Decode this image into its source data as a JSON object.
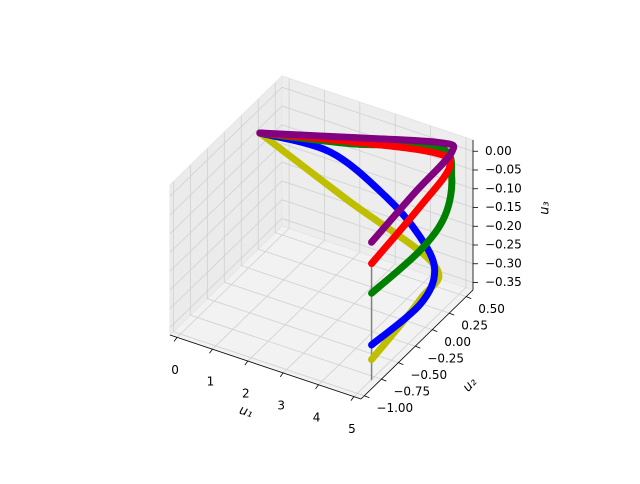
{
  "chart_data": {
    "type": "line3d",
    "x_label": "u₁",
    "y_label": "u₂",
    "z_label": "u₃",
    "xlim": [
      -0.2,
      5.2
    ],
    "ylim": [
      -1.05,
      0.6
    ],
    "zlim": [
      -0.37,
      0.03
    ],
    "xticks": [
      0,
      1,
      2,
      3,
      4,
      5
    ],
    "yticks": [
      {
        "value": -1,
        "label": "−1.00"
      },
      {
        "value": -0.75,
        "label": "−0.75"
      },
      {
        "value": -0.5,
        "label": "−0.50"
      },
      {
        "value": -0.25,
        "label": "−0.25"
      },
      {
        "value": 0,
        "label": "0.00"
      },
      {
        "value": 0.25,
        "label": "0.25"
      },
      {
        "value": 0.5,
        "label": "0.50"
      }
    ],
    "zticks": [
      {
        "value": -0.35,
        "label": "−0.35"
      },
      {
        "value": -0.3,
        "label": "−0.30"
      },
      {
        "value": -0.25,
        "label": "−0.25"
      },
      {
        "value": -0.2,
        "label": "−0.20"
      },
      {
        "value": -0.15,
        "label": "−0.15"
      },
      {
        "value": -0.1,
        "label": "−0.10"
      },
      {
        "value": -0.05,
        "label": "−0.05"
      },
      {
        "value": 0,
        "label": "0.00"
      }
    ],
    "grid": true,
    "series": [
      {
        "color": "#808080",
        "width": 1.5,
        "x": [
          5,
          5
        ],
        "y": [
          -0.79,
          -0.79
        ],
        "z": [
          -0.37,
          -0.05
        ]
      },
      {
        "color": "#bfbf00",
        "width": 7,
        "x": [
          0,
          2.5,
          5,
          5,
          5
        ],
        "y": [
          0.17,
          0.16,
          0.14,
          -0.08,
          -0.79
        ],
        "z": [
          -0.04,
          -0.138,
          -0.23,
          -0.283,
          -0.317
        ]
      },
      {
        "color": "#0000ff",
        "width": 7,
        "x": [
          0,
          1.5,
          3,
          4.3,
          5,
          5,
          5
        ],
        "y": [
          0.17,
          0.42,
          0.45,
          0.28,
          0.14,
          -0.08,
          -0.79
        ],
        "z": [
          -0.04,
          -0.087,
          -0.162,
          -0.198,
          -0.243,
          -0.296,
          -0.278
        ]
      },
      {
        "color": "#008000",
        "width": 7,
        "x": [
          0,
          2.5,
          4.5,
          5,
          5,
          5,
          5
        ],
        "y": [
          0.17,
          0.27,
          0.47,
          0.39,
          0.29,
          -0.08,
          -0.79
        ],
        "z": [
          -0.04,
          -0.008,
          0.011,
          -0.038,
          -0.124,
          -0.152,
          -0.14
        ]
      },
      {
        "color": "#ff0000",
        "width": 7,
        "x": [
          0,
          2.5,
          4.5,
          5,
          5,
          5
        ],
        "y": [
          0.17,
          0.27,
          0.4,
          0.36,
          -0.08,
          -0.79
        ],
        "z": [
          -0.04,
          -0.003,
          0.009,
          -0.006,
          -0.035,
          -0.061
        ]
      },
      {
        "color": "#800080",
        "width": 7,
        "x": [
          0,
          2.5,
          4.5,
          5,
          5,
          5
        ],
        "y": [
          0.17,
          0.34,
          0.47,
          0.39,
          -0.15,
          -0.79
        ],
        "z": [
          -0.04,
          -0.004,
          0.024,
          0.028,
          0.016,
          -0.004
        ]
      }
    ]
  }
}
